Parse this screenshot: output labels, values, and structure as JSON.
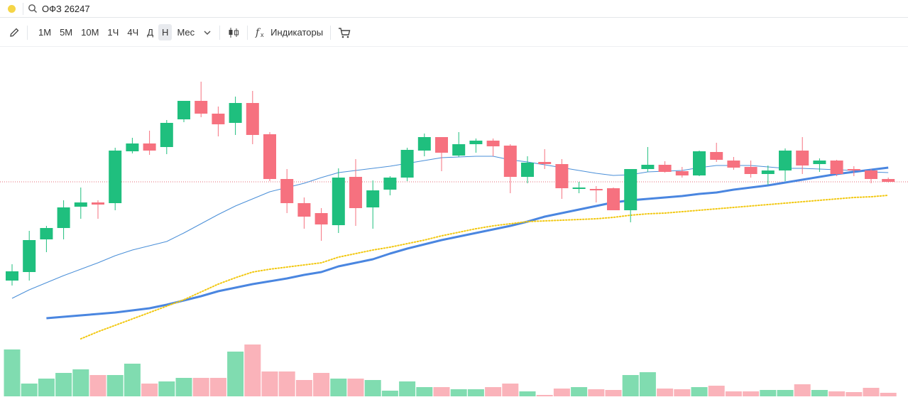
{
  "search": {
    "query": "ОФЗ 26247"
  },
  "toolbar": {
    "timeframes": [
      "1М",
      "5М",
      "10М",
      "1Ч",
      "4Ч",
      "Д",
      "Н",
      "Мес"
    ],
    "active_timeframe": 6,
    "indicators_button": "Индикаторы"
  },
  "chart_data": {
    "type": "candlestick",
    "open": [
      105,
      117,
      163,
      179,
      209,
      215,
      214,
      287,
      298,
      293,
      332,
      358,
      340,
      327,
      355,
      311,
      248,
      214,
      200,
      183,
      251,
      208,
      233,
      250,
      288,
      307,
      281,
      297,
      302,
      295,
      251,
      272,
      269,
      234,
      234,
      235,
      204,
      262,
      268,
      259,
      253,
      286,
      274,
      265,
      255,
      260,
      288,
      269,
      274,
      262,
      260,
      248
    ],
    "high": [
      128,
      175,
      182,
      218,
      236,
      218,
      292,
      306,
      316,
      331,
      358,
      385,
      350,
      364,
      372,
      314,
      262,
      222,
      207,
      263,
      276,
      246,
      252,
      292,
      312,
      307,
      314,
      305,
      305,
      297,
      280,
      290,
      276,
      244,
      238,
      236,
      262,
      293,
      273,
      265,
      288,
      299,
      279,
      274,
      267,
      291,
      307,
      277,
      275,
      266,
      262,
      250
    ],
    "low": [
      98,
      105,
      145,
      163,
      192,
      192,
      204,
      284,
      282,
      283,
      328,
      335,
      308,
      310,
      297,
      245,
      200,
      178,
      161,
      172,
      182,
      178,
      225,
      245,
      280,
      259,
      279,
      285,
      280,
      228,
      242,
      262,
      220,
      228,
      215,
      204,
      187,
      258,
      257,
      250,
      252,
      272,
      261,
      250,
      240,
      245,
      255,
      258,
      252,
      252,
      242,
      243
    ],
    "close": [
      118,
      162,
      179,
      208,
      215,
      212,
      288,
      298,
      288,
      327,
      358,
      340,
      325,
      355,
      310,
      248,
      214,
      195,
      184,
      250,
      207,
      232,
      250,
      289,
      307,
      285,
      297,
      302,
      294,
      251,
      271,
      269,
      235,
      236,
      232,
      204,
      262,
      268,
      258,
      253,
      287,
      275,
      264,
      255,
      260,
      288,
      267,
      274,
      255,
      260,
      248,
      244
    ],
    "up_color": "#1fbf7e",
    "down_color": "#f6717f",
    "ylim": [
      40,
      434
    ],
    "series": [
      {
        "color": "#4a8fd8",
        "width": 1,
        "dotted": false,
        "values": [
          80,
          92,
          102,
          112,
          121,
          130,
          140,
          148,
          154,
          160,
          172,
          185,
          198,
          210,
          220,
          230,
          236,
          242,
          250,
          257,
          260,
          263,
          266,
          270,
          274,
          278,
          279,
          280,
          280,
          275,
          272,
          268,
          264,
          260,
          256,
          253,
          254,
          258,
          259,
          260,
          264,
          267,
          267,
          267,
          265,
          263,
          263,
          262,
          261,
          260,
          258,
          257
        ]
      },
      {
        "color": "#4a86e0",
        "width": 3,
        "dotted": false,
        "values": [
          null,
          null,
          52,
          54,
          56,
          58,
          60,
          63,
          66,
          71,
          77,
          83,
          90,
          95,
          100,
          104,
          108,
          113,
          117,
          125,
          130,
          135,
          143,
          150,
          156,
          162,
          167,
          172,
          177,
          182,
          188,
          195,
          200,
          205,
          210,
          215,
          218,
          220,
          222,
          224,
          227,
          229,
          233,
          236,
          239,
          243,
          247,
          251,
          255,
          258,
          261,
          264
        ]
      },
      {
        "color": "#f2c811",
        "width": 2,
        "dotted": true,
        "values": [
          null,
          null,
          null,
          null,
          23,
          33,
          42,
          51,
          60,
          69,
          78,
          89,
          100,
          109,
          117,
          121,
          124,
          127,
          130,
          138,
          143,
          148,
          152,
          157,
          162,
          168,
          173,
          178,
          182,
          185,
          188,
          189,
          190,
          191,
          192,
          194,
          197,
          199,
          200,
          202,
          204,
          206,
          208,
          210,
          212,
          214,
          216,
          218,
          220,
          222,
          223,
          225
        ]
      }
    ],
    "volume": {
      "up_color": "#80dcb0",
      "down_color": "#fab3ba",
      "ylim": [
        0,
        100
      ],
      "values": [
        66,
        18,
        25,
        33,
        38,
        30,
        30,
        46,
        18,
        21,
        26,
        26,
        26,
        63,
        73,
        35,
        35,
        23,
        33,
        25,
        25,
        23,
        8,
        21,
        13,
        13,
        10,
        10,
        13,
        18,
        7,
        2,
        11,
        13,
        10,
        9,
        30,
        34,
        11,
        10,
        13,
        15,
        7,
        7,
        9,
        9,
        17,
        9,
        7,
        6,
        12,
        5
      ]
    }
  }
}
